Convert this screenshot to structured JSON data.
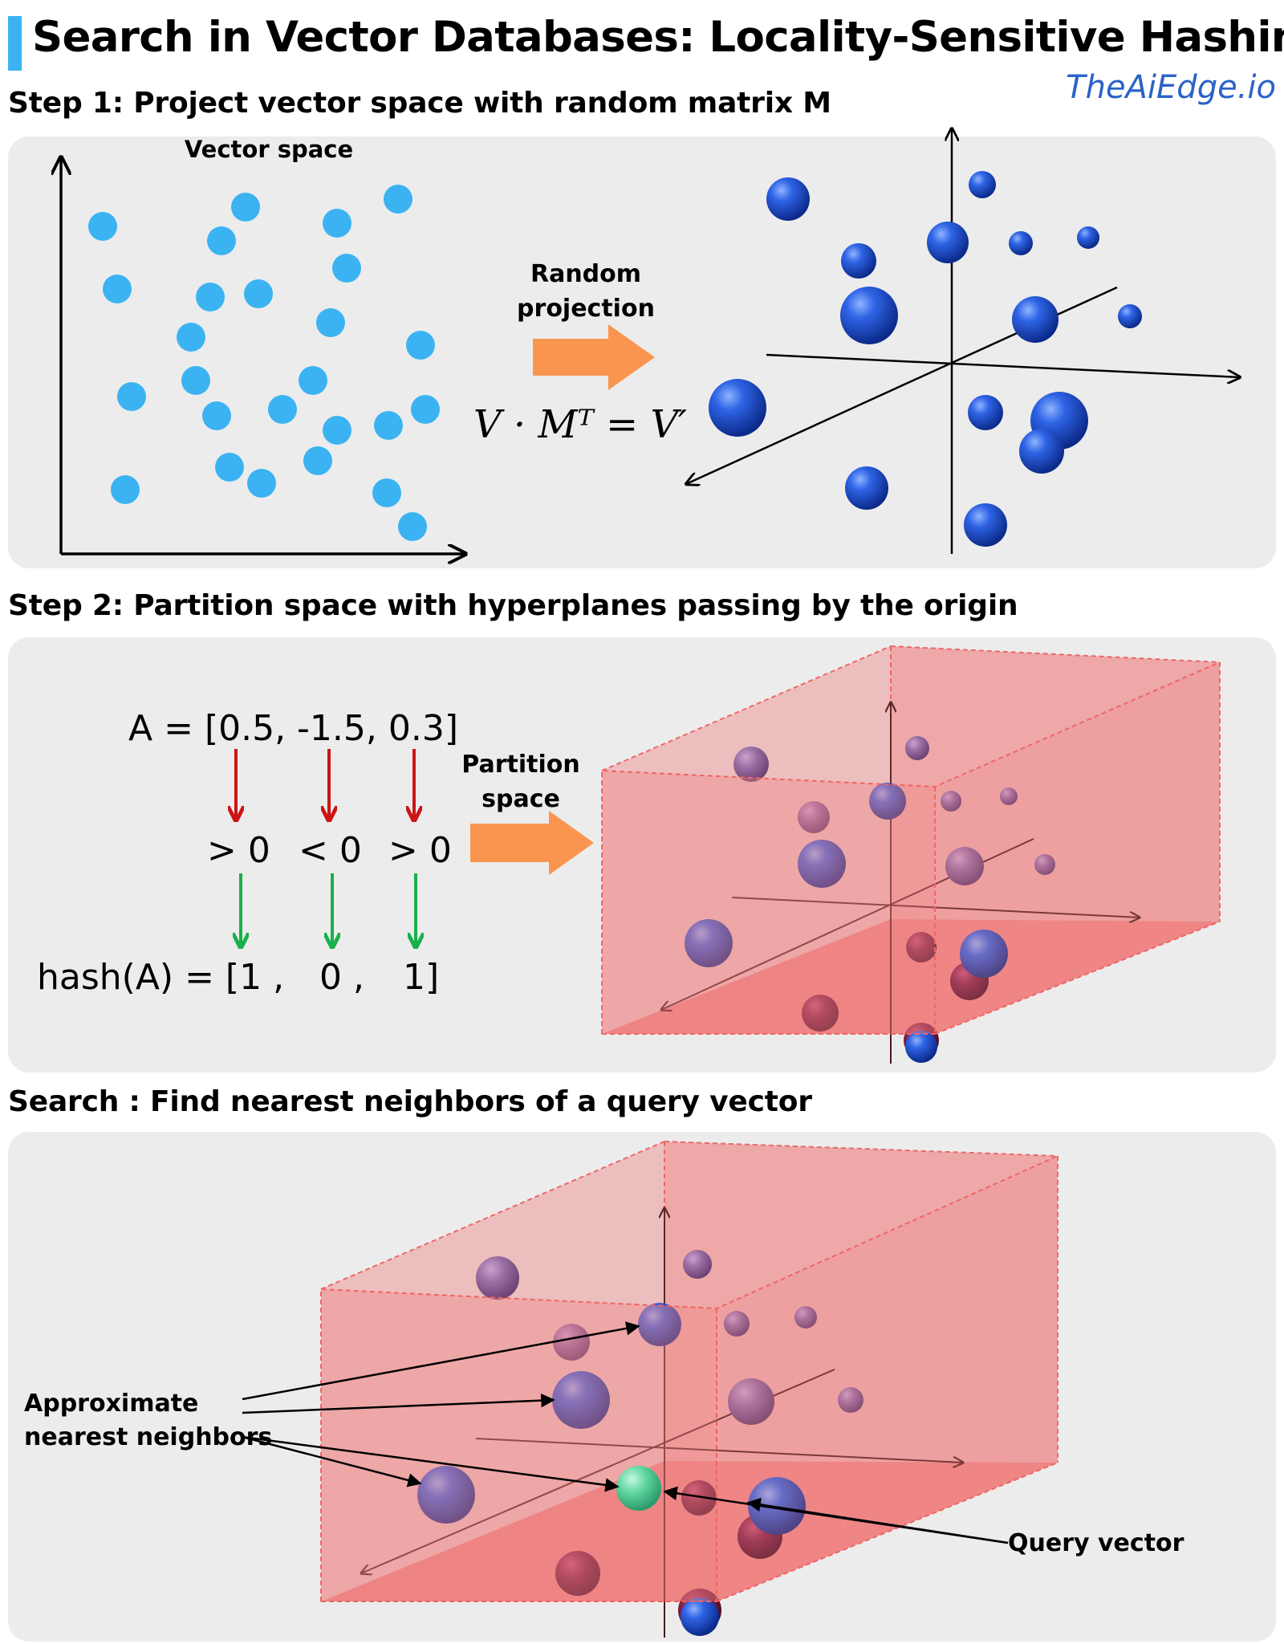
{
  "title": "Search in Vector Databases: Locality-Sensitive Hashing",
  "brand": "TheAiEdge.io",
  "step1": {
    "heading": "Step 1: Project vector space with random matrix M",
    "vector_space_label": "Vector space",
    "arrow_label_line1": "Random",
    "arrow_label_line2": "projection",
    "formula": "V · Mᵀ = V′",
    "point_color": "#3bb3f2",
    "sphere_color": "#1f4fd0"
  },
  "step2": {
    "heading": "Step 2: Partition space with hyperplanes passing by the origin",
    "vector_expr": "A = [0.5, -1.5, 0.3]",
    "comparisons": [
      "> 0",
      "< 0",
      "> 0"
    ],
    "hash_prefix": "hash(A) = [1 ,",
    "hash_mid": "0 ,",
    "hash_last": "1]",
    "arrow_label_line1": "Partition",
    "arrow_label_line2": "space",
    "red_arrow_color": "#cc1515",
    "green_arrow_color": "#19b04b",
    "box_color": "#f08080"
  },
  "step3": {
    "heading": "Search : Find nearest neighbors of a query vector",
    "neighbors_label_line1": "Approximate",
    "neighbors_label_line2": "nearest neighbors",
    "query_label": "Query vector",
    "query_color": "#5ed6a0"
  }
}
